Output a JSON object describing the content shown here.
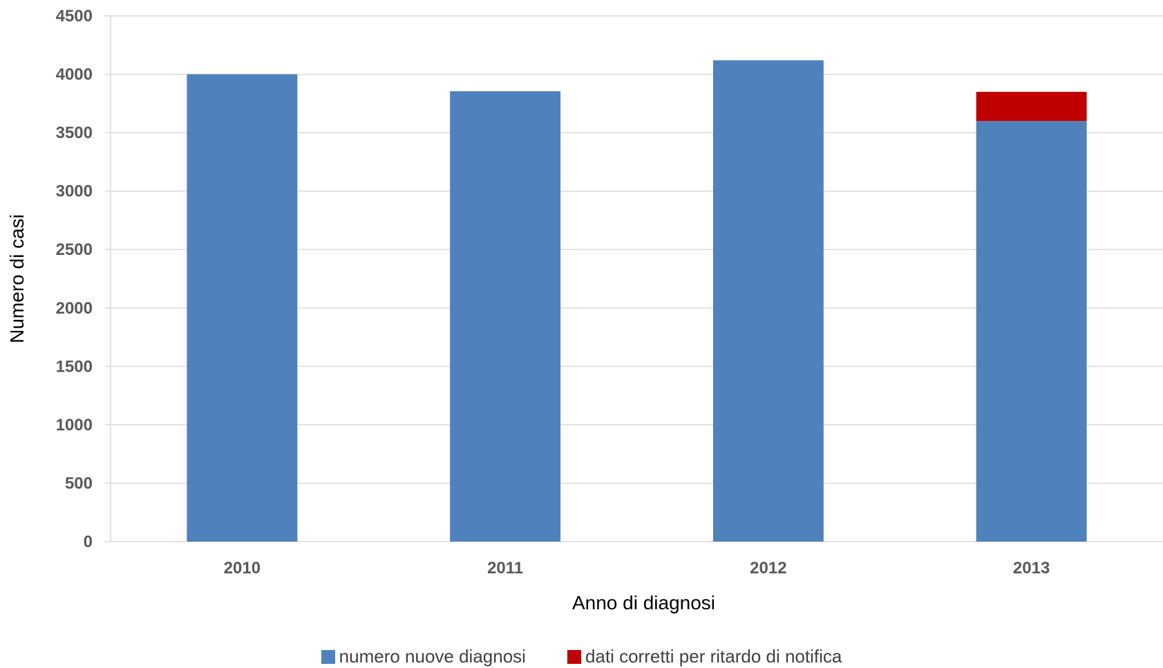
{
  "chart_data": {
    "type": "bar",
    "stacked": true,
    "categories": [
      "2010",
      "2011",
      "2012",
      "2013"
    ],
    "series": [
      {
        "name": "numero nuove diagnosi",
        "values": [
          4000,
          3855,
          4120,
          3600
        ],
        "color": "#4F81BD"
      },
      {
        "name": "dati corretti per ritardo di notifica",
        "values": [
          0,
          0,
          0,
          250
        ],
        "color": "#C00000"
      }
    ],
    "xlabel": "Anno di diagnosi",
    "ylabel": "Numero di casi",
    "ylim": [
      0,
      4500
    ],
    "yticks": [
      0,
      500,
      1000,
      1500,
      2000,
      2500,
      3000,
      3500,
      4000,
      4500
    ],
    "grid": true,
    "legend_position": "bottom"
  }
}
